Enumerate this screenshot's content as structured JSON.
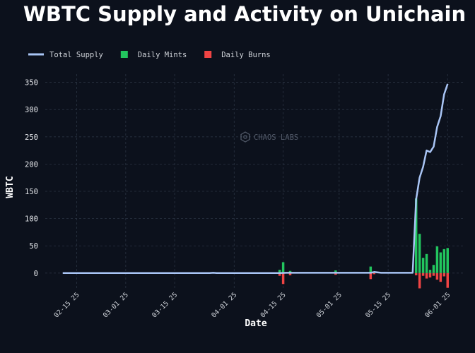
{
  "chart_data": {
    "type": "bar",
    "title": "WBTC Supply and Activity on Unichain",
    "xlabel": "Date",
    "ylabel": "WBTC",
    "watermark": "CHAOS LABS",
    "legend": [
      {
        "name": "Total Supply",
        "color": "#a9c5f5",
        "kind": "line"
      },
      {
        "name": "Daily Mints",
        "color": "#22c55e",
        "kind": "box"
      },
      {
        "name": "Daily Burns",
        "color": "#ef4444",
        "kind": "box"
      }
    ],
    "legend_position": "top-left",
    "grid": true,
    "xlim": [
      "2025-02-06",
      "2025-06-06"
    ],
    "ylim": [
      -30,
      365
    ],
    "y_ticks": [
      0,
      50,
      100,
      150,
      200,
      250,
      300,
      350
    ],
    "x_ticks": [
      {
        "date": "2025-02-15",
        "label": "02-15 25"
      },
      {
        "date": "2025-03-01",
        "label": "03-01 25"
      },
      {
        "date": "2025-03-15",
        "label": "03-15 25"
      },
      {
        "date": "2025-04-01",
        "label": "04-01 25"
      },
      {
        "date": "2025-04-15",
        "label": "04-15 25"
      },
      {
        "date": "2025-05-01",
        "label": "05-01 25"
      },
      {
        "date": "2025-05-15",
        "label": "05-15 25"
      },
      {
        "date": "2025-06-01",
        "label": "06-01 25"
      }
    ],
    "series": [
      {
        "name": "Total Supply",
        "type": "line",
        "color": "#a9c5f5",
        "points": [
          [
            "2025-02-11",
            0
          ],
          [
            "2025-03-25",
            0
          ],
          [
            "2025-03-26",
            0.5
          ],
          [
            "2025-03-27",
            0
          ],
          [
            "2025-04-14",
            0
          ],
          [
            "2025-04-16",
            0.5
          ],
          [
            "2025-05-10",
            0.5
          ],
          [
            "2025-05-11",
            2
          ],
          [
            "2025-05-13",
            0.5
          ],
          [
            "2025-05-22",
            0.5
          ],
          [
            "2025-05-23",
            135
          ],
          [
            "2025-05-24",
            175
          ],
          [
            "2025-05-25",
            195
          ],
          [
            "2025-05-26",
            225
          ],
          [
            "2025-05-27",
            222
          ],
          [
            "2025-05-28",
            232
          ],
          [
            "2025-05-29",
            268
          ],
          [
            "2025-05-30",
            288
          ],
          [
            "2025-05-31",
            328
          ],
          [
            "2025-06-01",
            347
          ]
        ]
      },
      {
        "name": "Daily Mints",
        "type": "bar",
        "color": "#22c55e",
        "points": [
          [
            "2025-04-14",
            6
          ],
          [
            "2025-04-15",
            20
          ],
          [
            "2025-04-17",
            4
          ],
          [
            "2025-04-30",
            5
          ],
          [
            "2025-05-10",
            12
          ],
          [
            "2025-05-11",
            3
          ],
          [
            "2025-05-23",
            137
          ],
          [
            "2025-05-24",
            72
          ],
          [
            "2025-05-25",
            28
          ],
          [
            "2025-05-26",
            35
          ],
          [
            "2025-05-27",
            6
          ],
          [
            "2025-05-28",
            15
          ],
          [
            "2025-05-29",
            49
          ],
          [
            "2025-05-30",
            38
          ],
          [
            "2025-05-31",
            44
          ],
          [
            "2025-06-01",
            46
          ]
        ]
      },
      {
        "name": "Daily Burns",
        "type": "bar",
        "color": "#ef4444",
        "points": [
          [
            "2025-04-14",
            -5
          ],
          [
            "2025-04-15",
            -20
          ],
          [
            "2025-04-17",
            -4
          ],
          [
            "2025-04-30",
            -3
          ],
          [
            "2025-05-10",
            -11
          ],
          [
            "2025-05-11",
            -2
          ],
          [
            "2025-05-23",
            -4
          ],
          [
            "2025-05-24",
            -28
          ],
          [
            "2025-05-25",
            -5
          ],
          [
            "2025-05-26",
            -10
          ],
          [
            "2025-05-27",
            -8
          ],
          [
            "2025-05-28",
            -5
          ],
          [
            "2025-05-29",
            -12
          ],
          [
            "2025-05-30",
            -16
          ],
          [
            "2025-05-31",
            -6
          ],
          [
            "2025-06-01",
            -27
          ]
        ]
      }
    ]
  }
}
